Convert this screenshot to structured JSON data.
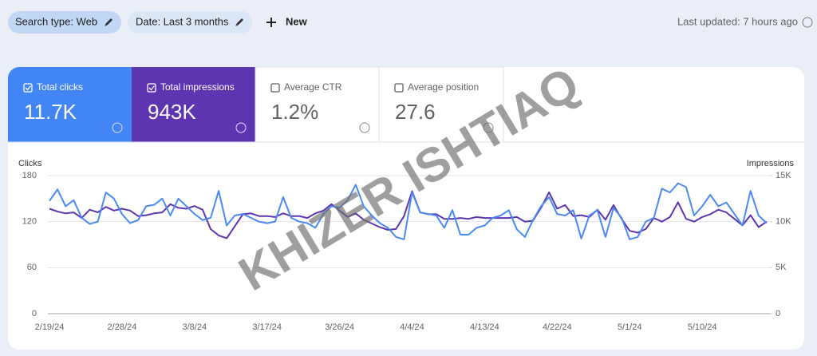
{
  "toolbar": {
    "search_type": "Search type: Web",
    "date": "Date: Last 3 months",
    "new": "New",
    "last_updated": "Last updated: 7 hours ago"
  },
  "metrics": [
    {
      "label": "Total clicks",
      "value": "11.7K"
    },
    {
      "label": "Total impressions",
      "value": "943K"
    },
    {
      "label": "Average CTR",
      "value": "1.2%"
    },
    {
      "label": "Average position",
      "value": "27.6"
    }
  ],
  "watermark": "KHIZER ISHTIAQ",
  "chart_data": {
    "type": "line",
    "y_label": "Clicks",
    "y2_label": "Impressions",
    "categories": [
      "2/19/24",
      null,
      null,
      null,
      null,
      null,
      null,
      null,
      null,
      "2/28/24",
      null,
      null,
      null,
      null,
      null,
      null,
      null,
      null,
      "3/8/24",
      null,
      null,
      null,
      null,
      null,
      null,
      null,
      null,
      "3/17/24",
      null,
      null,
      null,
      null,
      null,
      null,
      null,
      null,
      "3/26/24",
      null,
      null,
      null,
      null,
      null,
      null,
      null,
      null,
      "4/4/24",
      null,
      null,
      null,
      null,
      null,
      null,
      null,
      null,
      "4/13/24",
      null,
      null,
      null,
      null,
      null,
      null,
      null,
      null,
      "4/22/24",
      null,
      null,
      null,
      null,
      null,
      null,
      null,
      null,
      "5/1/24",
      null,
      null,
      null,
      null,
      null,
      null,
      null,
      null,
      "5/10/24",
      null,
      null,
      null,
      null,
      null,
      null,
      null,
      null
    ],
    "series": [
      {
        "color": "#4a8af4",
        "values": [
          147,
          162,
          140,
          148,
          125,
          117,
          120,
          158,
          150,
          130,
          118,
          122,
          140,
          142,
          150,
          128,
          150,
          140,
          130,
          122,
          125,
          160,
          115,
          128,
          130,
          125,
          120,
          118,
          120,
          152,
          125,
          120,
          118,
          112,
          130,
          140,
          138,
          148,
          168,
          140,
          128,
          118,
          112,
          100,
          97,
          158,
          132,
          130,
          128,
          112,
          135,
          103,
          103,
          112,
          115,
          125,
          128,
          135,
          110,
          100,
          122,
          140,
          152,
          130,
          128,
          135,
          98,
          128,
          135,
          100,
          138,
          125,
          97,
          100,
          120,
          125,
          163,
          158,
          170,
          165,
          128,
          140,
          155,
          140,
          145,
          130,
          115,
          160,
          128,
          118
        ]
      },
      {
        "color": "#5e35b1",
        "axis": "y2",
        "values": [
          11400,
          11100,
          10900,
          11000,
          10400,
          11300,
          11000,
          11600,
          11200,
          11400,
          11200,
          10600,
          10700,
          10900,
          11000,
          11900,
          11500,
          11400,
          11700,
          11300,
          9200,
          8500,
          8200,
          9500,
          10800,
          10900,
          10600,
          10600,
          10500,
          10900,
          10600,
          10600,
          10400,
          10900,
          11200,
          11900,
          11200,
          10500,
          10900,
          10200,
          9800,
          9400,
          9100,
          9200,
          10600,
          13300,
          11000,
          10800,
          10800,
          10300,
          10300,
          10400,
          10300,
          10500,
          10400,
          10400,
          10400,
          10400,
          10500,
          10000,
          10100,
          11500,
          13200,
          11400,
          11800,
          10600,
          10700,
          10500,
          11300,
          10200,
          11800,
          10300,
          9000,
          8800,
          9200,
          10400,
          10000,
          10500,
          12100,
          10300,
          10000,
          10500,
          10800,
          11300,
          11000,
          10300,
          9600,
          10700,
          9400,
          10000
        ]
      }
    ],
    "ylim": [
      0,
      180
    ],
    "yticks": [
      0,
      60,
      120,
      180
    ],
    "y2lim": [
      0,
      15000
    ],
    "y2ticks": [
      0,
      {
        "value": 5000,
        "label": "5K"
      },
      {
        "value": 10000,
        "label": "10K"
      },
      {
        "value": 15000,
        "label": "15K"
      }
    ],
    "grid": true
  }
}
